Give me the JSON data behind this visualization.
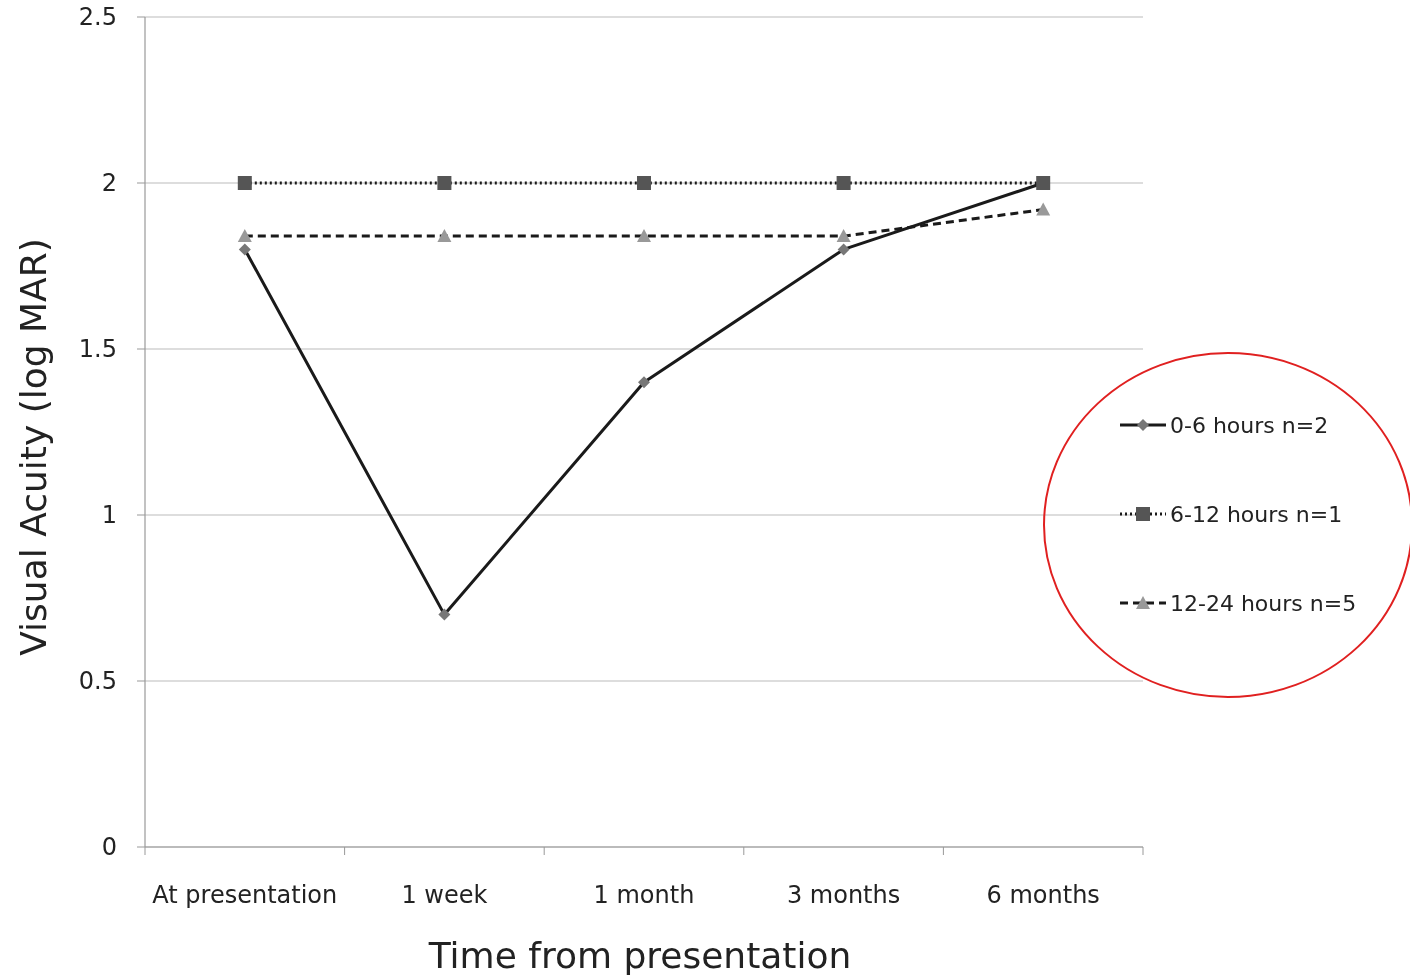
{
  "chart_data": {
    "type": "line",
    "xlabel": "Time from presentation",
    "ylabel": "Visual Acuity (log MAR)",
    "categories": [
      "At presentation",
      "1 week",
      "1 month",
      "3 months",
      "6 months"
    ],
    "series": [
      {
        "name": "0-6 hours n=2",
        "color": "#1a1a1a",
        "values": [
          1.8,
          0.7,
          1.4,
          1.8,
          2.0
        ],
        "marker": "diamond",
        "line_style": "solid"
      },
      {
        "name": "6-12 hours n=1",
        "color": "#1a1a1a",
        "values": [
          2,
          2,
          2,
          2,
          2
        ],
        "marker": "square",
        "line_style": "dotted"
      },
      {
        "name": "12-24 hours n=5",
        "color": "#1a1a1a",
        "values": [
          1.84,
          1.84,
          1.84,
          1.84,
          1.92
        ],
        "marker": "triangle",
        "line_style": "dashed"
      }
    ],
    "ylim": [
      0,
      2.5
    ],
    "yticks": [
      0,
      0.5,
      1,
      1.5,
      2,
      2.5
    ],
    "grid": "y",
    "legend": "right"
  }
}
